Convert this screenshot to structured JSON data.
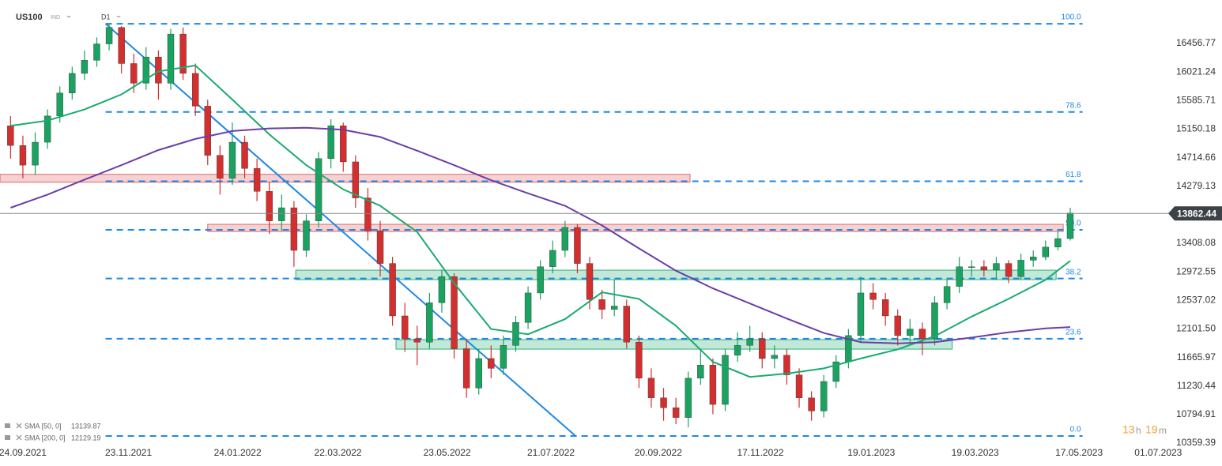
{
  "header": {
    "symbol": "US100",
    "category": "IND",
    "timeframe": "D1"
  },
  "chart_data": {
    "type": "candlestick",
    "ylim": [
      10311.5,
      17119.5
    ],
    "yticks": [
      16456.77,
      16021.24,
      15585.71,
      15150.18,
      14714.66,
      14279.13,
      13408.08,
      12972.55,
      12537.02,
      {
        "value": 12101.5,
        "label": "12101.50"
      },
      11665.97,
      11230.44,
      10794.91,
      10359.39
    ],
    "xlim": [
      "11.09.2021",
      "04.07.2023"
    ],
    "xticks": [
      "24.09.2021",
      "23.11.2021",
      "24.01.2022",
      "22.03.2022",
      "23.05.2022",
      "21.07.2022",
      "20.09.2022",
      "17.11.2022",
      "19.01.2023",
      "19.03.2023",
      "17.05.2023",
      "01.07.2023"
    ],
    "grid": false,
    "up_color": "#1aa260",
    "down_color": "#d32f2f",
    "x": [
      "17.09.2021",
      "24.09.2021",
      "01.10.2021",
      "08.10.2021",
      "15.10.2021",
      "22.10.2021",
      "29.10.2021",
      "05.11.2021",
      "12.11.2021",
      "19.11.2021",
      "26.11.2021",
      "03.12.2021",
      "10.12.2021",
      "17.12.2021",
      "24.12.2021",
      "31.12.2021",
      "07.01.2022",
      "14.01.2022",
      "21.01.2022",
      "28.01.2022",
      "04.02.2022",
      "11.02.2022",
      "18.02.2022",
      "25.02.2022",
      "04.03.2022",
      "11.03.2022",
      "18.03.2022",
      "25.03.2022",
      "01.04.2022",
      "08.04.2022",
      "15.04.2022",
      "22.04.2022",
      "29.04.2022",
      "06.05.2022",
      "13.05.2022",
      "20.05.2022",
      "27.05.2022",
      "03.06.2022",
      "10.06.2022",
      "17.06.2022",
      "24.06.2022",
      "01.07.2022",
      "08.07.2022",
      "15.07.2022",
      "22.07.2022",
      "29.07.2022",
      "05.08.2022",
      "12.08.2022",
      "19.08.2022",
      "26.08.2022",
      "02.09.2022",
      "09.09.2022",
      "16.09.2022",
      "23.09.2022",
      "30.09.2022",
      "07.10.2022",
      "14.10.2022",
      "21.10.2022",
      "28.10.2022",
      "04.11.2022",
      "11.11.2022",
      "18.11.2022",
      "25.11.2022",
      "02.12.2022",
      "09.12.2022",
      "16.12.2022",
      "23.12.2022",
      "30.12.2022",
      "06.01.2023",
      "13.01.2023",
      "20.01.2023",
      "27.01.2023",
      "03.02.2023",
      "10.02.2023",
      "17.02.2023",
      "24.02.2023",
      "03.03.2023",
      "10.03.2023",
      "17.03.2023",
      "24.03.2023",
      "31.03.2023",
      "07.04.2023",
      "14.04.2023",
      "21.04.2023",
      "28.04.2023",
      "05.05.2023",
      "12.05.2023"
    ],
    "open": [
      15200,
      14900,
      14600,
      14950,
      15350,
      15700,
      16000,
      16200,
      16450,
      16700,
      16150,
      15850,
      16250,
      15850,
      16600,
      16000,
      15500,
      14750,
      14400,
      14950,
      14550,
      14200,
      13750,
      13950,
      13300,
      13750,
      14700,
      15200,
      14650,
      14100,
      13600,
      13100,
      12300,
      11950,
      11900,
      12500,
      12900,
      11800,
      11200,
      11650,
      11500,
      11850,
      12200,
      12650,
      13050,
      13300,
      13650,
      13100,
      12550,
      12400,
      12450,
      11900,
      11350,
      11050,
      10900,
      10750,
      11350,
      11550,
      10950,
      11700,
      11850,
      11950,
      11650,
      11700,
      11400,
      11050,
      10850,
      11300,
      11600,
      12000,
      12650,
      12550,
      12300,
      12000,
      12100,
      11950,
      12500,
      12750,
      13050,
      13050,
      13000,
      13100,
      12900,
      13150,
      13200,
      13350,
      13480
    ],
    "high": [
      15350,
      15050,
      15100,
      15450,
      15800,
      16100,
      16350,
      16550,
      16760,
      16720,
      16300,
      16400,
      16350,
      16680,
      16700,
      16150,
      15600,
      14900,
      15250,
      15050,
      14700,
      14350,
      14150,
      14050,
      13850,
      14800,
      15300,
      15250,
      14750,
      14250,
      13750,
      13200,
      12500,
      12150,
      12650,
      13000,
      12950,
      11950,
      11800,
      11850,
      12000,
      12300,
      12750,
      13150,
      13450,
      13750,
      13700,
      13200,
      12700,
      12850,
      12550,
      12000,
      11500,
      11200,
      11050,
      11450,
      11800,
      11650,
      11800,
      12050,
      12150,
      12050,
      11850,
      11800,
      11500,
      11150,
      11400,
      11700,
      12100,
      12900,
      12800,
      12650,
      12400,
      12250,
      12200,
      12600,
      12850,
      13200,
      13150,
      13150,
      13200,
      13150,
      13250,
      13300,
      13450,
      13600,
      13950
    ],
    "low": [
      14700,
      14400,
      14450,
      14850,
      15250,
      15600,
      15900,
      16100,
      16350,
      16000,
      15700,
      15750,
      15600,
      15750,
      15900,
      15350,
      14600,
      14150,
      14300,
      14400,
      14050,
      13550,
      13600,
      13050,
      13200,
      13650,
      14550,
      14500,
      13950,
      13450,
      12900,
      12150,
      11750,
      11550,
      11800,
      12350,
      11650,
      11050,
      11100,
      11350,
      11400,
      11750,
      12100,
      12550,
      12950,
      13200,
      12950,
      12400,
      12250,
      12300,
      11800,
      11200,
      10900,
      10700,
      10650,
      10600,
      11250,
      10800,
      10850,
      11600,
      11750,
      11500,
      11500,
      11250,
      10900,
      10700,
      10750,
      11200,
      11500,
      11900,
      12400,
      12150,
      11850,
      11900,
      11700,
      11850,
      12400,
      12650,
      12900,
      12900,
      12850,
      12800,
      12850,
      13050,
      13150,
      13300,
      13450
    ],
    "close": [
      14900,
      14600,
      14950,
      15350,
      15700,
      16000,
      16200,
      16450,
      16700,
      16150,
      15850,
      16250,
      15850,
      16600,
      16000,
      15500,
      14750,
      14400,
      14950,
      14550,
      14200,
      13750,
      13950,
      13300,
      13750,
      14700,
      15200,
      14650,
      14100,
      13600,
      13100,
      12300,
      11950,
      11900,
      12500,
      12900,
      11800,
      11200,
      11650,
      11500,
      11850,
      12200,
      12650,
      13050,
      13300,
      13650,
      13100,
      12550,
      12400,
      12450,
      11900,
      11350,
      11050,
      10900,
      10750,
      11350,
      11550,
      10950,
      11700,
      11850,
      11950,
      11650,
      11700,
      11400,
      11050,
      10850,
      11300,
      11600,
      12000,
      12650,
      12550,
      12300,
      12000,
      12100,
      11950,
      12500,
      12750,
      13050,
      13050,
      13000,
      13100,
      12900,
      13150,
      13200,
      13350,
      13480,
      13870
    ],
    "sma": [
      {
        "name": "SMA [50, 0]",
        "color": "#1aaa6e",
        "x": [
          "17.09.2021",
          "08.10.2021",
          "29.10.2021",
          "19.11.2021",
          "10.12.2021",
          "31.12.2021",
          "21.01.2022",
          "11.02.2022",
          "04.03.2022",
          "25.03.2022",
          "15.04.2022",
          "06.05.2022",
          "27.05.2022",
          "17.06.2022",
          "08.07.2022",
          "29.07.2022",
          "19.08.2022",
          "09.09.2022",
          "30.09.2022",
          "21.10.2022",
          "11.11.2022",
          "02.12.2022",
          "23.12.2022",
          "13.01.2023",
          "03.02.2023",
          "24.02.2023",
          "17.03.2023",
          "07.04.2023",
          "28.04.2023",
          "12.05.2023"
        ],
        "values": [
          15200,
          15280,
          15450,
          15680,
          16030,
          16120,
          15600,
          15070,
          14600,
          14230,
          13980,
          13580,
          12800,
          12100,
          12020,
          12250,
          12660,
          12560,
          12150,
          11600,
          11370,
          11420,
          11500,
          11650,
          11790,
          11990,
          12290,
          12560,
          12850,
          13139.87
        ]
      },
      {
        "name": "SMA [200, 0]",
        "color": "#6a3fa8",
        "x": [
          "17.09.2021",
          "08.10.2021",
          "29.10.2021",
          "19.11.2021",
          "10.12.2021",
          "31.12.2021",
          "21.01.2022",
          "11.02.2022",
          "04.03.2022",
          "25.03.2022",
          "15.04.2022",
          "06.05.2022",
          "27.05.2022",
          "17.06.2022",
          "08.07.2022",
          "29.07.2022",
          "19.08.2022",
          "09.09.2022",
          "30.09.2022",
          "21.10.2022",
          "11.11.2022",
          "02.12.2022",
          "23.12.2022",
          "13.01.2023",
          "03.02.2023",
          "24.02.2023",
          "17.03.2023",
          "07.04.2023",
          "28.04.2023",
          "12.05.2023"
        ],
        "values": [
          13950,
          14150,
          14380,
          14600,
          14830,
          15000,
          15120,
          15160,
          15170,
          15140,
          15030,
          14820,
          14600,
          14370,
          14170,
          13980,
          13680,
          13330,
          12990,
          12720,
          12490,
          12260,
          12040,
          11900,
          11880,
          11900,
          11970,
          12050,
          12110,
          12129.19
        ]
      }
    ],
    "fibonacci": {
      "color": "#1e88e5",
      "high": 16757,
      "low": 10468,
      "start": "10.11.2021",
      "end": "19.05.2023",
      "levels": [
        {
          "value": 100,
          "label": "100.0"
        },
        78.6,
        61.8,
        {
          "value": 50,
          "label": "50.0"
        },
        38.2,
        23.6,
        {
          "value": 0,
          "label": "0.0"
        }
      ]
    },
    "trendline": {
      "color": "#1e88e5",
      "start": "10.11.2021",
      "start_price": 16757,
      "end": "04.08.2022",
      "end_price": 10468
    },
    "zones": [
      {
        "color": "#e06666",
        "from": "11.09.2021",
        "to": "08.10.2022",
        "low": 14340,
        "high": 14460
      },
      {
        "color": "#e06666",
        "from": "07.01.2022",
        "to": "08.05.2023",
        "low": 13588,
        "high": 13697
      },
      {
        "color": "#34b27b",
        "from": "26.02.2022",
        "to": "04.05.2023",
        "low": 12853,
        "high": 12998
      },
      {
        "color": "#34b27b",
        "from": "24.04.2022",
        "to": "06.03.2023",
        "low": 11793,
        "high": 11938
      }
    ],
    "last_price": 13862.44
  },
  "timer": {
    "hours": "13",
    "hours_unit": "h",
    "minutes": "19",
    "minutes_unit": "m"
  }
}
